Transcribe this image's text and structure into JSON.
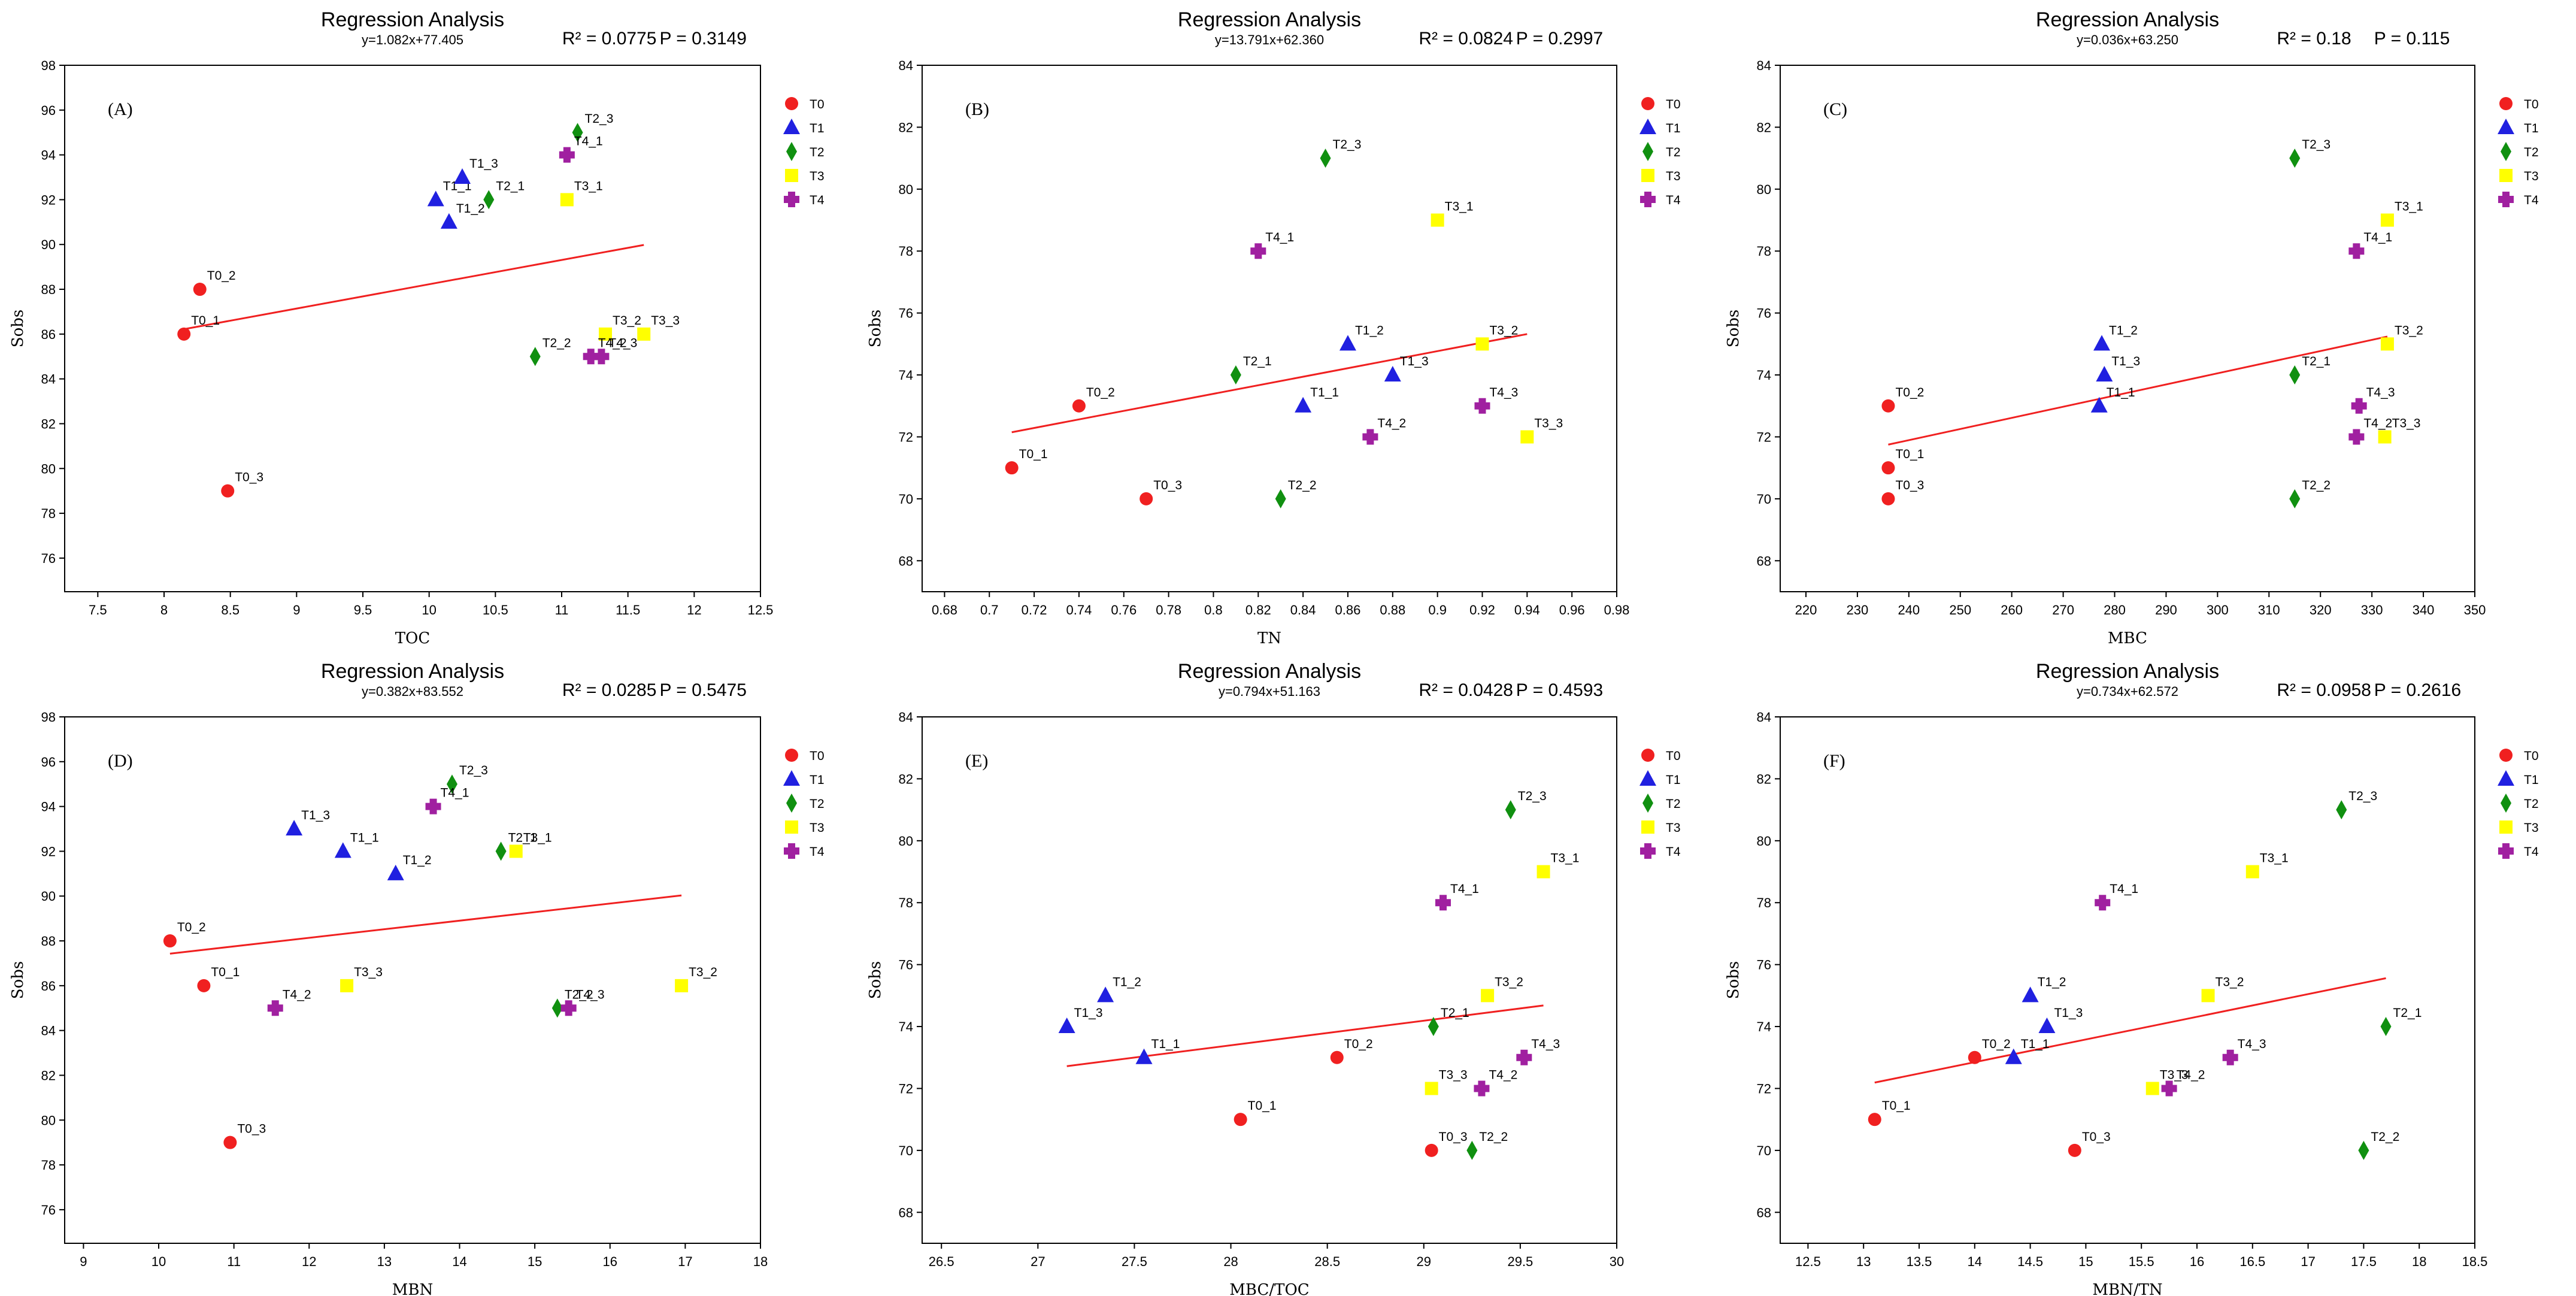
{
  "series_colors": {
    "T0": "#f02020",
    "T1": "#2020e0",
    "T2": "#109010",
    "T3": "#ffff00",
    "T4": "#a020a0"
  },
  "series_shapes": {
    "T0": "circle",
    "T1": "triangle",
    "T2": "diamond",
    "T3": "square",
    "T4": "cross"
  },
  "chart_data": [
    {
      "type": "scatter",
      "panel": "(A)",
      "title": "Regression Analysis",
      "equation": "y=1.082x+77.405",
      "r2": "R² = 0.0775",
      "p": "P = 0.3149",
      "xlabel": "TOC",
      "ylabel": "Sobs",
      "xlim": [
        7.25,
        12.5
      ],
      "ylim": [
        74.5,
        98
      ],
      "xticks": [
        7.5,
        8,
        8.5,
        9,
        9.5,
        10,
        10.5,
        11,
        11.5,
        12,
        12.5
      ],
      "yticks": [
        76,
        78,
        80,
        82,
        84,
        86,
        88,
        90,
        92,
        94,
        96,
        98
      ],
      "legend": [
        "T0",
        "T1",
        "T2",
        "T3",
        "T4"
      ],
      "regression": {
        "x": [
          8.15,
          11.62
        ],
        "y": [
          86.22,
          89.98
        ]
      },
      "points": [
        {
          "s": "T0",
          "label": "T0_1",
          "x": 8.15,
          "y": 86
        },
        {
          "s": "T0",
          "label": "T0_2",
          "x": 8.27,
          "y": 88
        },
        {
          "s": "T0",
          "label": "T0_3",
          "x": 8.48,
          "y": 79
        },
        {
          "s": "T1",
          "label": "T1_1",
          "x": 10.05,
          "y": 92
        },
        {
          "s": "T1",
          "label": "T1_2",
          "x": 10.15,
          "y": 91
        },
        {
          "s": "T1",
          "label": "T1_3",
          "x": 10.25,
          "y": 93
        },
        {
          "s": "T2",
          "label": "T2_1",
          "x": 10.45,
          "y": 92
        },
        {
          "s": "T2",
          "label": "T2_2",
          "x": 10.8,
          "y": 85
        },
        {
          "s": "T2",
          "label": "T2_3",
          "x": 11.12,
          "y": 95
        },
        {
          "s": "T3",
          "label": "T3_1",
          "x": 11.04,
          "y": 92
        },
        {
          "s": "T3",
          "label": "T3_2",
          "x": 11.33,
          "y": 86
        },
        {
          "s": "T3",
          "label": "T3_3",
          "x": 11.62,
          "y": 86
        },
        {
          "s": "T4",
          "label": "T4_1",
          "x": 11.04,
          "y": 94
        },
        {
          "s": "T4",
          "label": "T4_2",
          "x": 11.22,
          "y": 85
        },
        {
          "s": "T4",
          "label": "T4_3",
          "x": 11.3,
          "y": 85
        }
      ]
    },
    {
      "type": "scatter",
      "panel": "(B)",
      "title": "Regression Analysis",
      "equation": "y=13.791x+62.360",
      "r2": "R² = 0.0824",
      "p": "P = 0.2997",
      "xlabel": "TN",
      "ylabel": "Sobs",
      "xlim": [
        0.67,
        0.98
      ],
      "ylim": [
        67,
        84
      ],
      "xticks": [
        0.68,
        0.7,
        0.72,
        0.74,
        0.76,
        0.78,
        0.8,
        0.82,
        0.84,
        0.86,
        0.88,
        0.9,
        0.92,
        0.94,
        0.96,
        0.98
      ],
      "yticks": [
        68,
        70,
        72,
        74,
        76,
        78,
        80,
        82,
        84
      ],
      "legend": [
        "T0",
        "T1",
        "T2",
        "T3",
        "T4"
      ],
      "regression": {
        "x": [
          0.71,
          0.94
        ],
        "y": [
          72.15,
          75.32
        ]
      },
      "points": [
        {
          "s": "T0",
          "label": "T0_1",
          "x": 0.71,
          "y": 71
        },
        {
          "s": "T0",
          "label": "T0_2",
          "x": 0.74,
          "y": 73
        },
        {
          "s": "T0",
          "label": "T0_3",
          "x": 0.77,
          "y": 70
        },
        {
          "s": "T1",
          "label": "T1_1",
          "x": 0.84,
          "y": 73
        },
        {
          "s": "T1",
          "label": "T1_2",
          "x": 0.86,
          "y": 75
        },
        {
          "s": "T1",
          "label": "T1_3",
          "x": 0.88,
          "y": 74
        },
        {
          "s": "T2",
          "label": "T2_1",
          "x": 0.81,
          "y": 74
        },
        {
          "s": "T2",
          "label": "T2_2",
          "x": 0.83,
          "y": 70
        },
        {
          "s": "T2",
          "label": "T2_3",
          "x": 0.85,
          "y": 81
        },
        {
          "s": "T3",
          "label": "T3_1",
          "x": 0.9,
          "y": 79
        },
        {
          "s": "T3",
          "label": "T3_2",
          "x": 0.92,
          "y": 75
        },
        {
          "s": "T3",
          "label": "T3_3",
          "x": 0.94,
          "y": 72
        },
        {
          "s": "T4",
          "label": "T4_1",
          "x": 0.82,
          "y": 78
        },
        {
          "s": "T4",
          "label": "T4_2",
          "x": 0.87,
          "y": 72
        },
        {
          "s": "T4",
          "label": "T4_3",
          "x": 0.92,
          "y": 73
        }
      ]
    },
    {
      "type": "scatter",
      "panel": "(C)",
      "title": "Regression Analysis",
      "equation": "y=0.036x+63.250",
      "r2": "R² = 0.18",
      "p": "P = 0.115",
      "xlabel": "MBC",
      "ylabel": "Sobs",
      "xlim": [
        215,
        350
      ],
      "ylim": [
        67,
        84
      ],
      "xticks": [
        220,
        230,
        240,
        250,
        260,
        270,
        280,
        290,
        300,
        310,
        320,
        330,
        340,
        350
      ],
      "yticks": [
        68,
        70,
        72,
        74,
        76,
        78,
        80,
        82,
        84
      ],
      "legend": [
        "T0",
        "T1",
        "T2",
        "T3",
        "T4"
      ],
      "regression": {
        "x": [
          236,
          333
        ],
        "y": [
          71.75,
          75.24
        ]
      },
      "points": [
        {
          "s": "T0",
          "label": "T0_1",
          "x": 236,
          "y": 71
        },
        {
          "s": "T0",
          "label": "T0_2",
          "x": 236,
          "y": 73
        },
        {
          "s": "T0",
          "label": "T0_3",
          "x": 236,
          "y": 70
        },
        {
          "s": "T1",
          "label": "T1_1",
          "x": 277,
          "y": 73
        },
        {
          "s": "T1",
          "label": "T1_2",
          "x": 277.5,
          "y": 75
        },
        {
          "s": "T1",
          "label": "T1_3",
          "x": 278,
          "y": 74
        },
        {
          "s": "T2",
          "label": "T2_1",
          "x": 315,
          "y": 74
        },
        {
          "s": "T2",
          "label": "T2_2",
          "x": 315,
          "y": 70
        },
        {
          "s": "T2",
          "label": "T2_3",
          "x": 315,
          "y": 81
        },
        {
          "s": "T3",
          "label": "T3_1",
          "x": 333,
          "y": 79
        },
        {
          "s": "T3",
          "label": "T3_2",
          "x": 333,
          "y": 75
        },
        {
          "s": "T3",
          "label": "T3_3",
          "x": 332.5,
          "y": 72
        },
        {
          "s": "T4",
          "label": "T4_1",
          "x": 327,
          "y": 78
        },
        {
          "s": "T4",
          "label": "T4_2",
          "x": 327,
          "y": 72
        },
        {
          "s": "T4",
          "label": "T4_3",
          "x": 327.5,
          "y": 73
        }
      ]
    },
    {
      "type": "scatter",
      "panel": "(D)",
      "title": "Regression Analysis",
      "equation": "y=0.382x+83.552",
      "r2": "R² = 0.0285",
      "p": "P = 0.5475",
      "xlabel": "MBN",
      "ylabel": "Sobs",
      "xlim": [
        8.75,
        18
      ],
      "ylim": [
        74.5,
        98
      ],
      "xticks": [
        9,
        10,
        11,
        12,
        13,
        14,
        15,
        16,
        17,
        18
      ],
      "yticks": [
        76,
        78,
        80,
        82,
        84,
        86,
        88,
        90,
        92,
        94,
        96,
        98
      ],
      "legend": [
        "T0",
        "T1",
        "T2",
        "T3",
        "T4"
      ],
      "regression": {
        "x": [
          10.15,
          16.95
        ],
        "y": [
          87.43,
          90.03
        ]
      },
      "points": [
        {
          "s": "T0",
          "label": "T0_1",
          "x": 10.6,
          "y": 86
        },
        {
          "s": "T0",
          "label": "T0_2",
          "x": 10.15,
          "y": 88
        },
        {
          "s": "T0",
          "label": "T0_3",
          "x": 10.95,
          "y": 79
        },
        {
          "s": "T1",
          "label": "T1_1",
          "x": 12.45,
          "y": 92
        },
        {
          "s": "T1",
          "label": "T1_2",
          "x": 13.15,
          "y": 91
        },
        {
          "s": "T1",
          "label": "T1_3",
          "x": 11.8,
          "y": 93
        },
        {
          "s": "T2",
          "label": "T2_1",
          "x": 14.55,
          "y": 92
        },
        {
          "s": "T2",
          "label": "T2_2",
          "x": 15.3,
          "y": 85
        },
        {
          "s": "T2",
          "label": "T2_3",
          "x": 13.9,
          "y": 95
        },
        {
          "s": "T3",
          "label": "T3_1",
          "x": 14.75,
          "y": 92
        },
        {
          "s": "T3",
          "label": "T3_2",
          "x": 16.95,
          "y": 86
        },
        {
          "s": "T3",
          "label": "T3_3",
          "x": 12.5,
          "y": 86
        },
        {
          "s": "T4",
          "label": "T4_1",
          "x": 13.65,
          "y": 94
        },
        {
          "s": "T4",
          "label": "T4_2",
          "x": 11.55,
          "y": 85
        },
        {
          "s": "T4",
          "label": "T4_3",
          "x": 15.45,
          "y": 85
        }
      ]
    },
    {
      "type": "scatter",
      "panel": "(E)",
      "title": "Regression Analysis",
      "equation": "y=0.794x+51.163",
      "r2": "R² = 0.0428",
      "p": "P = 0.4593",
      "xlabel": "MBC/TOC",
      "ylabel": "Sobs",
      "xlim": [
        26.4,
        30
      ],
      "ylim": [
        67,
        84
      ],
      "xticks": [
        26.5,
        27,
        27.5,
        28,
        28.5,
        29,
        29.5,
        30
      ],
      "yticks": [
        68,
        70,
        72,
        74,
        76,
        78,
        80,
        82,
        84
      ],
      "legend": [
        "T0",
        "T1",
        "T2",
        "T3",
        "T4"
      ],
      "regression": {
        "x": [
          27.15,
          29.62
        ],
        "y": [
          72.72,
          74.68
        ]
      },
      "points": [
        {
          "s": "T0",
          "label": "T0_1",
          "x": 28.05,
          "y": 71
        },
        {
          "s": "T0",
          "label": "T0_2",
          "x": 28.55,
          "y": 73
        },
        {
          "s": "T0",
          "label": "T0_3",
          "x": 29.04,
          "y": 70
        },
        {
          "s": "T1",
          "label": "T1_1",
          "x": 27.55,
          "y": 73
        },
        {
          "s": "T1",
          "label": "T1_2",
          "x": 27.35,
          "y": 75
        },
        {
          "s": "T1",
          "label": "T1_3",
          "x": 27.15,
          "y": 74
        },
        {
          "s": "T2",
          "label": "T2_1",
          "x": 29.05,
          "y": 74
        },
        {
          "s": "T2",
          "label": "T2_2",
          "x": 29.25,
          "y": 70
        },
        {
          "s": "T2",
          "label": "T2_3",
          "x": 29.45,
          "y": 81
        },
        {
          "s": "T3",
          "label": "T3_1",
          "x": 29.62,
          "y": 79
        },
        {
          "s": "T3",
          "label": "T3_2",
          "x": 29.33,
          "y": 75
        },
        {
          "s": "T3",
          "label": "T3_3",
          "x": 29.04,
          "y": 72
        },
        {
          "s": "T4",
          "label": "T4_1",
          "x": 29.1,
          "y": 78
        },
        {
          "s": "T4",
          "label": "T4_2",
          "x": 29.3,
          "y": 72
        },
        {
          "s": "T4",
          "label": "T4_3",
          "x": 29.52,
          "y": 73
        }
      ]
    },
    {
      "type": "scatter",
      "panel": "(F)",
      "title": "Regression Analysis",
      "equation": "y=0.734x+62.572",
      "r2": "R² = 0.0958",
      "p": "P = 0.2616",
      "xlabel": "MBN/TN",
      "ylabel": "Sobs",
      "xlim": [
        12.25,
        18.5
      ],
      "ylim": [
        67,
        84
      ],
      "xticks": [
        12.5,
        13,
        13.5,
        14,
        14.5,
        15,
        15.5,
        16,
        16.5,
        17,
        17.5,
        18,
        18.5
      ],
      "yticks": [
        68,
        70,
        72,
        74,
        76,
        78,
        80,
        82,
        84
      ],
      "legend": [
        "T0",
        "T1",
        "T2",
        "T3",
        "T4"
      ],
      "regression": {
        "x": [
          13.1,
          17.7
        ],
        "y": [
          72.19,
          75.56
        ]
      },
      "points": [
        {
          "s": "T0",
          "label": "T0_1",
          "x": 13.1,
          "y": 71
        },
        {
          "s": "T0",
          "label": "T0_2",
          "x": 14.0,
          "y": 73
        },
        {
          "s": "T0",
          "label": "T0_3",
          "x": 14.9,
          "y": 70
        },
        {
          "s": "T1",
          "label": "T1_1",
          "x": 14.35,
          "y": 73
        },
        {
          "s": "T1",
          "label": "T1_2",
          "x": 14.5,
          "y": 75
        },
        {
          "s": "T1",
          "label": "T1_3",
          "x": 14.65,
          "y": 74
        },
        {
          "s": "T2",
          "label": "T2_1",
          "x": 17.7,
          "y": 74
        },
        {
          "s": "T2",
          "label": "T2_2",
          "x": 17.5,
          "y": 70
        },
        {
          "s": "T2",
          "label": "T2_3",
          "x": 17.3,
          "y": 81
        },
        {
          "s": "T3",
          "label": "T3_1",
          "x": 16.5,
          "y": 79
        },
        {
          "s": "T3",
          "label": "T3_2",
          "x": 16.1,
          "y": 75
        },
        {
          "s": "T3",
          "label": "T3_3",
          "x": 15.6,
          "y": 72
        },
        {
          "s": "T4",
          "label": "T4_1",
          "x": 15.15,
          "y": 78
        },
        {
          "s": "T4",
          "label": "T4_2",
          "x": 15.75,
          "y": 72
        },
        {
          "s": "T4",
          "label": "T4_3",
          "x": 16.3,
          "y": 73
        }
      ]
    }
  ]
}
